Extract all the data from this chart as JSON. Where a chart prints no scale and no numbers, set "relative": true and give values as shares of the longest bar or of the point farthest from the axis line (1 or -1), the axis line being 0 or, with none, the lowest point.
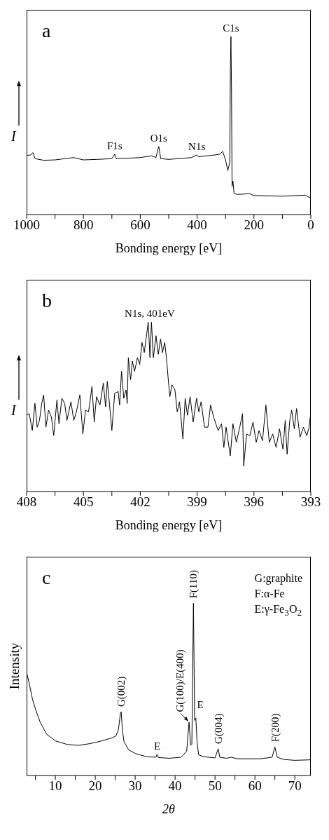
{
  "chart_data": [
    {
      "type": "line",
      "xlabel": "Bonding energy [eV]",
      "ylabel": "I",
      "relative": true,
      "xlim": [
        1000,
        0
      ],
      "xticks": [
        1000,
        {
          "value": 900,
          "label": null
        },
        800,
        {
          "value": 700,
          "label": null
        },
        600,
        {
          "value": 500,
          "label": null
        },
        400,
        {
          "value": 300,
          "label": null
        },
        200,
        {
          "value": 100,
          "label": null
        },
        0
      ],
      "annotations": [
        "a",
        {
          "text": "F1s",
          "x": 690,
          "y": 0.339
        },
        {
          "text": "O1s",
          "x": 535,
          "y": 0.383
        },
        {
          "text": "N1s",
          "x": 401,
          "y": 0.335
        },
        {
          "text": "C1s",
          "x": 281,
          "y": 1.0
        }
      ],
      "series": [
        {
          "color": "#000000",
          "x": [
            1000,
            985,
            978,
            970,
            940,
            900,
            835,
            800,
            750,
            700,
            690,
            685,
            650,
            600,
            560,
            545,
            535,
            528,
            500,
            450,
            420,
            401,
            395,
            350,
            320,
            310,
            300,
            292,
            285,
            283,
            281,
            279,
            277,
            274,
            270,
            260,
            215,
            200,
            100,
            20,
            0
          ],
          "values": [
            0.332,
            0.335,
            0.348,
            0.314,
            0.305,
            0.307,
            0.32,
            0.307,
            0.31,
            0.314,
            0.339,
            0.314,
            0.316,
            0.32,
            0.33,
            0.32,
            0.383,
            0.314,
            0.31,
            0.316,
            0.32,
            0.335,
            0.325,
            0.332,
            0.339,
            0.355,
            0.307,
            0.247,
            0.295,
            0.82,
            1.0,
            0.696,
            0.157,
            0.188,
            0.119,
            0.113,
            0.117,
            0.107,
            0.103,
            0.109,
            0.092
          ]
        }
      ]
    },
    {
      "type": "line",
      "xlabel": "Bonding energy [eV]",
      "ylabel": "I",
      "relative": true,
      "xlim": [
        408,
        393
      ],
      "xticks": [
        408,
        {
          "value": 406.5,
          "label": null
        },
        405,
        {
          "value": 403.5,
          "label": null
        },
        402,
        {
          "value": 400.5,
          "label": null
        },
        399,
        {
          "value": 397.5,
          "label": null
        },
        396,
        {
          "value": 394.5,
          "label": null
        },
        393
      ],
      "annotations": [
        "b",
        {
          "text": "N1s, 401eV",
          "x": 401.5,
          "y": 1.0
        }
      ],
      "series": [
        {
          "color": "#000000",
          "x": [
            408.0,
            407.86,
            407.7,
            407.56,
            407.44,
            407.32,
            407.2,
            407.1,
            406.98,
            406.84,
            406.69,
            406.57,
            406.4,
            406.29,
            406.14,
            405.99,
            405.87,
            405.66,
            405.51,
            405.37,
            405.19,
            405.03,
            404.89,
            404.73,
            404.55,
            404.43,
            404.31,
            404.13,
            403.95,
            403.83,
            403.74,
            403.62,
            403.5,
            403.35,
            403.17,
            403.09,
            402.99,
            402.87,
            402.75,
            402.69,
            402.63,
            402.51,
            402.42,
            402.3,
            402.15,
            402.03,
            401.91,
            401.79,
            401.58,
            401.49,
            401.41,
            401.31,
            401.17,
            401.05,
            400.93,
            400.83,
            400.71,
            400.62,
            400.53,
            400.44,
            400.33,
            400.17,
            400.05,
            399.93,
            399.75,
            399.63,
            399.51,
            399.37,
            399.21,
            399.03,
            398.91,
            398.79,
            398.61,
            398.43,
            398.29,
            398.13,
            397.89,
            397.71,
            397.59,
            397.47,
            397.25,
            397.11,
            396.93,
            396.75,
            396.6,
            396.54,
            396.39,
            396.21,
            396.05,
            395.88,
            395.73,
            395.55,
            395.37,
            395.19,
            395.01,
            394.83,
            394.65,
            394.47,
            394.35,
            394.25,
            394.11,
            394.01,
            393.87,
            393.75,
            393.57,
            393.39,
            393.21,
            393.09,
            393.03
          ],
          "values": [
            0.45,
            0.46,
            0.36,
            0.52,
            0.38,
            0.42,
            0.52,
            0.57,
            0.38,
            0.48,
            0.44,
            0.33,
            0.54,
            0.4,
            0.55,
            0.52,
            0.42,
            0.53,
            0.42,
            0.47,
            0.57,
            0.34,
            0.48,
            0.47,
            0.62,
            0.41,
            0.56,
            0.51,
            0.64,
            0.5,
            0.65,
            0.51,
            0.36,
            0.58,
            0.59,
            0.51,
            0.71,
            0.55,
            0.6,
            0.52,
            0.79,
            0.66,
            0.77,
            0.71,
            0.79,
            0.75,
            0.88,
            0.82,
            1.0,
            0.79,
            1.0,
            0.79,
            0.92,
            0.81,
            0.9,
            0.82,
            0.88,
            0.79,
            0.67,
            0.56,
            0.63,
            0.6,
            0.47,
            0.53,
            0.31,
            0.55,
            0.45,
            0.56,
            0.41,
            0.55,
            0.47,
            0.53,
            0.38,
            0.38,
            0.51,
            0.44,
            0.36,
            0.4,
            0.26,
            0.38,
            0.21,
            0.4,
            0.29,
            0.38,
            0.46,
            0.15,
            0.34,
            0.33,
            0.41,
            0.29,
            0.36,
            0.3,
            0.51,
            0.29,
            0.34,
            0.26,
            0.37,
            0.25,
            0.42,
            0.22,
            0.42,
            0.48,
            0.37,
            0.49,
            0.32,
            0.38,
            0.33,
            0.38,
            0.44
          ]
        }
      ]
    },
    {
      "type": "line",
      "xlabel": "2θ",
      "ylabel": "Intensity",
      "relative": true,
      "xlim": [
        2.8,
        74
      ],
      "xticks": [
        {
          "value": 5,
          "label": null
        },
        10,
        {
          "value": 15,
          "label": null
        },
        20,
        {
          "value": 25,
          "label": null
        },
        30,
        {
          "value": 35,
          "label": null
        },
        40,
        {
          "value": 45,
          "label": null
        },
        50,
        {
          "value": 55,
          "label": null
        },
        60,
        {
          "value": 65,
          "label": null
        },
        70
      ],
      "annotations": [
        "c",
        "G:graphite",
        "F:α-Fe",
        "E:γ-Fe$_{3}$O$_{2}$",
        {
          "text": "G(002)",
          "x": 26.5,
          "y": 0.37
        },
        {
          "text": "E",
          "x": 35.5,
          "y": 0.123
        },
        {
          "text": "G(100)/E(400)",
          "x": 43.5,
          "y": 0.31
        },
        {
          "text": "F(110)",
          "x": 44.6,
          "y": 1.0
        },
        {
          "text": "E",
          "x": 45.2,
          "y": 0.334
        },
        {
          "text": "G(004)",
          "x": 50.8,
          "y": 0.155
        },
        {
          "text": "F(200)",
          "x": 65.0,
          "y": 0.166
        }
      ],
      "series": [
        {
          "color": "#000000",
          "x": [
            2.8,
            3.5,
            4.3,
            5.1,
            6.2,
            7.8,
            10.1,
            13.0,
            15.8,
            18.7,
            21.5,
            24.4,
            25.2,
            25.8,
            26.3,
            26.5,
            26.8,
            27.2,
            28.4,
            30.1,
            32.9,
            35.2,
            35.5,
            35.8,
            38.6,
            41.5,
            42.9,
            43.5,
            43.9,
            44.2,
            44.6,
            44.9,
            45.2,
            45.5,
            45.9,
            47.2,
            50.0,
            50.8,
            51.2,
            52.9,
            54.0,
            55.7,
            58.6,
            61.4,
            64.3,
            65.0,
            65.6,
            67.2,
            70.0,
            73.9
          ],
          "values": [
            0.6,
            0.53,
            0.44,
            0.38,
            0.31,
            0.24,
            0.2,
            0.18,
            0.175,
            0.185,
            0.2,
            0.22,
            0.23,
            0.265,
            0.36,
            0.37,
            0.265,
            0.196,
            0.148,
            0.127,
            0.109,
            0.106,
            0.123,
            0.104,
            0.1,
            0.106,
            0.141,
            0.31,
            0.175,
            0.182,
            1.0,
            0.32,
            0.334,
            0.196,
            0.12,
            0.109,
            0.102,
            0.155,
            0.106,
            0.1,
            0.106,
            0.097,
            0.097,
            0.097,
            0.106,
            0.166,
            0.106,
            0.093,
            0.088,
            0.091
          ]
        }
      ]
    }
  ]
}
